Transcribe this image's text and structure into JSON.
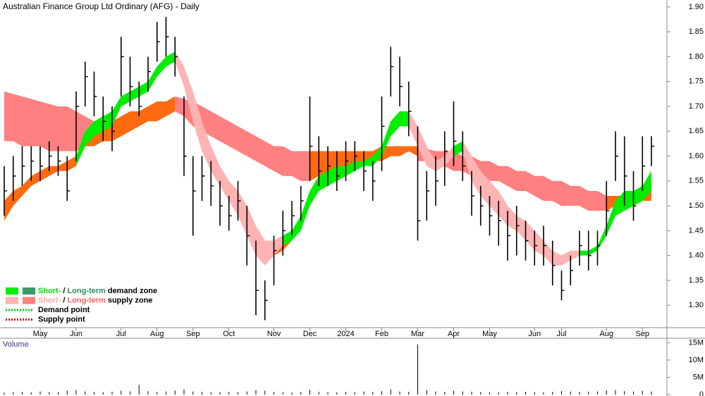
{
  "chart_data": [
    {
      "type": "ohlc",
      "title": "Australian Finance Group Ltd Ordinary (AFG) - Daily",
      "bar_color": "#000000",
      "categories": [
        null,
        null,
        null,
        null,
        "May",
        null,
        null,
        null,
        "Jun",
        null,
        null,
        null,
        null,
        "Jul",
        null,
        null,
        null,
        "Aug",
        null,
        null,
        null,
        "Sep",
        null,
        null,
        null,
        "Oct",
        null,
        null,
        null,
        null,
        "Nov",
        null,
        null,
        null,
        "Dec",
        null,
        null,
        null,
        "2024",
        null,
        null,
        null,
        "Feb",
        null,
        null,
        null,
        "Mar",
        null,
        null,
        null,
        "Apr",
        null,
        null,
        null,
        "May",
        null,
        null,
        null,
        null,
        "Jun",
        null,
        null,
        "Jul",
        null,
        null,
        null,
        null,
        "Aug",
        null,
        null,
        null,
        "Sep",
        null
      ],
      "close": [
        1.53,
        1.56,
        1.58,
        1.59,
        1.58,
        1.6,
        1.59,
        1.53,
        1.7,
        1.76,
        1.72,
        1.67,
        1.65,
        1.8,
        1.74,
        1.7,
        1.77,
        1.83,
        1.84,
        1.8,
        1.6,
        1.53,
        1.56,
        1.54,
        1.5,
        1.48,
        1.51,
        1.44,
        1.33,
        1.31,
        1.41,
        1.45,
        1.48,
        1.51,
        1.62,
        1.57,
        1.58,
        1.56,
        1.59,
        1.6,
        1.57,
        1.55,
        1.66,
        1.78,
        1.74,
        1.69,
        1.47,
        1.53,
        1.55,
        1.61,
        1.63,
        1.58,
        1.52,
        1.5,
        1.48,
        1.47,
        1.44,
        1.46,
        1.43,
        1.42,
        1.42,
        1.38,
        1.33,
        1.37,
        1.42,
        1.4,
        1.42,
        1.49,
        1.6,
        1.56,
        1.5,
        1.58,
        1.62
      ],
      "high": [
        1.58,
        1.6,
        1.62,
        1.62,
        1.62,
        1.63,
        1.62,
        1.6,
        1.73,
        1.79,
        1.77,
        1.72,
        1.7,
        1.84,
        1.8,
        1.75,
        1.8,
        1.87,
        1.88,
        1.84,
        1.72,
        1.6,
        1.6,
        1.59,
        1.55,
        1.52,
        1.55,
        1.5,
        1.43,
        1.35,
        1.44,
        1.49,
        1.51,
        1.54,
        1.72,
        1.64,
        1.62,
        1.61,
        1.63,
        1.63,
        1.61,
        1.59,
        1.72,
        1.82,
        1.8,
        1.75,
        1.66,
        1.57,
        1.6,
        1.65,
        1.71,
        1.65,
        1.57,
        1.54,
        1.52,
        1.51,
        1.49,
        1.5,
        1.47,
        1.45,
        1.46,
        1.43,
        1.37,
        1.4,
        1.45,
        1.45,
        1.45,
        1.55,
        1.65,
        1.64,
        1.57,
        1.64,
        1.64
      ],
      "low": [
        1.48,
        1.51,
        1.54,
        1.55,
        1.55,
        1.57,
        1.56,
        1.51,
        1.59,
        1.7,
        1.68,
        1.63,
        1.61,
        1.72,
        1.7,
        1.68,
        1.73,
        1.79,
        1.8,
        1.76,
        1.56,
        1.44,
        1.51,
        1.5,
        1.46,
        1.45,
        1.47,
        1.38,
        1.28,
        1.27,
        1.34,
        1.4,
        1.44,
        1.47,
        1.55,
        1.54,
        1.54,
        1.53,
        1.55,
        1.57,
        1.53,
        1.51,
        1.57,
        1.72,
        1.7,
        1.64,
        1.43,
        1.47,
        1.5,
        1.54,
        1.58,
        1.55,
        1.48,
        1.46,
        1.44,
        1.42,
        1.39,
        1.4,
        1.39,
        1.38,
        1.38,
        1.34,
        1.31,
        1.34,
        1.38,
        1.37,
        1.38,
        1.44,
        1.55,
        1.5,
        1.47,
        1.53,
        1.58
      ],
      "zones": [
        {
          "color": "#ff8080",
          "upper": [
            1.73,
            1.725,
            1.72,
            1.715,
            1.71,
            1.705,
            1.7,
            1.7,
            1.69,
            1.68,
            1.67,
            null,
            null,
            null,
            null,
            null,
            null,
            null,
            null,
            1.72,
            1.715,
            1.71,
            1.7,
            1.69,
            1.68,
            1.67,
            1.66,
            1.65,
            1.64,
            1.63,
            1.62,
            1.62,
            1.61,
            1.61,
            1.61,
            null,
            null,
            null,
            null,
            null,
            null,
            null,
            null,
            null,
            null,
            null,
            1.62,
            1.615,
            1.61,
            1.61,
            1.61,
            1.6,
            1.6,
            1.59,
            1.59,
            1.58,
            1.58,
            1.57,
            1.57,
            1.56,
            1.56,
            1.55,
            1.55,
            1.54,
            1.54,
            1.53,
            1.53,
            1.52,
            null,
            null,
            null,
            null,
            null
          ],
          "lower": [
            1.63,
            1.63,
            1.62,
            1.62,
            1.62,
            1.61,
            1.61,
            1.61,
            1.61,
            1.62,
            1.63,
            null,
            null,
            null,
            null,
            null,
            null,
            null,
            null,
            1.69,
            1.68,
            1.66,
            1.65,
            1.64,
            1.63,
            1.62,
            1.61,
            1.6,
            1.59,
            1.58,
            1.57,
            1.56,
            1.56,
            1.55,
            1.55,
            null,
            null,
            null,
            null,
            null,
            null,
            null,
            null,
            null,
            null,
            null,
            1.59,
            1.59,
            1.58,
            1.58,
            1.57,
            1.57,
            1.56,
            1.56,
            1.55,
            1.55,
            1.54,
            1.53,
            1.53,
            1.52,
            1.51,
            1.51,
            1.5,
            1.5,
            1.5,
            1.49,
            1.49,
            1.49,
            null,
            null,
            null,
            null,
            null
          ]
        },
        {
          "color": "#ff6a10",
          "upper": [
            1.51,
            1.53,
            1.54,
            1.56,
            1.57,
            1.58,
            1.58,
            1.59,
            1.6,
            1.64,
            1.65,
            1.66,
            1.67,
            1.68,
            1.69,
            1.69,
            1.7,
            1.71,
            1.71,
            1.72,
            null,
            null,
            null,
            null,
            null,
            null,
            null,
            null,
            null,
            null,
            1.43,
            1.44,
            1.45,
            null,
            1.61,
            1.61,
            1.61,
            1.61,
            1.61,
            1.61,
            1.61,
            1.61,
            1.62,
            1.62,
            1.62,
            1.62,
            1.62,
            null,
            null,
            null,
            null,
            null,
            null,
            null,
            null,
            null,
            null,
            null,
            null,
            null,
            null,
            null,
            null,
            null,
            null,
            null,
            null,
            1.52,
            1.52,
            1.52,
            1.53,
            1.53,
            1.53
          ],
          "lower": [
            1.47,
            1.5,
            1.52,
            1.54,
            1.55,
            1.56,
            1.57,
            1.57,
            1.58,
            1.62,
            1.62,
            1.63,
            1.63,
            1.64,
            1.65,
            1.66,
            1.67,
            1.67,
            1.68,
            1.69,
            null,
            null,
            null,
            null,
            null,
            null,
            null,
            null,
            null,
            null,
            1.4,
            1.41,
            1.43,
            null,
            1.55,
            1.56,
            1.56,
            1.57,
            1.57,
            1.58,
            1.58,
            1.59,
            1.59,
            1.6,
            1.6,
            1.61,
            1.6,
            null,
            null,
            null,
            null,
            null,
            null,
            null,
            null,
            null,
            null,
            null,
            null,
            null,
            null,
            null,
            null,
            null,
            null,
            null,
            null,
            1.49,
            1.5,
            1.5,
            1.5,
            1.51,
            1.51
          ]
        },
        {
          "color": "#ffb3b3",
          "upper": [
            null,
            null,
            null,
            null,
            null,
            null,
            null,
            null,
            null,
            null,
            null,
            null,
            null,
            null,
            null,
            null,
            null,
            null,
            null,
            1.81,
            1.78,
            1.73,
            1.67,
            1.62,
            1.58,
            1.55,
            1.53,
            1.5,
            1.46,
            1.43,
            1.43,
            1.44,
            null,
            null,
            null,
            null,
            null,
            null,
            null,
            null,
            null,
            null,
            null,
            null,
            null,
            1.69,
            1.66,
            1.62,
            1.59,
            1.6,
            1.62,
            1.63,
            1.6,
            1.57,
            1.55,
            1.53,
            1.5,
            1.48,
            1.47,
            1.45,
            1.43,
            1.41,
            1.4,
            1.41,
            1.41,
            null,
            null,
            null,
            null,
            null,
            null,
            null,
            null
          ],
          "lower": [
            null,
            null,
            null,
            null,
            null,
            null,
            null,
            null,
            null,
            null,
            null,
            null,
            null,
            null,
            null,
            null,
            null,
            null,
            null,
            1.79,
            1.74,
            1.67,
            1.61,
            1.57,
            1.54,
            1.51,
            1.48,
            1.44,
            1.4,
            1.38,
            1.4,
            1.42,
            null,
            null,
            null,
            null,
            null,
            null,
            null,
            null,
            null,
            null,
            null,
            null,
            null,
            1.66,
            1.62,
            1.58,
            1.57,
            1.58,
            1.6,
            1.61,
            1.55,
            1.52,
            1.5,
            1.48,
            1.46,
            1.45,
            1.43,
            1.41,
            1.4,
            1.38,
            1.38,
            1.39,
            1.4,
            null,
            null,
            null,
            null,
            null,
            null,
            null,
            null
          ]
        },
        {
          "color": "#00ee00",
          "upper": [
            null,
            null,
            null,
            null,
            null,
            null,
            null,
            null,
            1.6,
            1.65,
            1.67,
            1.68,
            1.69,
            1.72,
            1.73,
            1.74,
            1.75,
            1.78,
            1.8,
            1.81,
            null,
            null,
            null,
            null,
            null,
            null,
            null,
            null,
            null,
            null,
            null,
            1.44,
            1.45,
            1.48,
            1.53,
            1.56,
            1.57,
            1.58,
            1.58,
            1.59,
            1.59,
            1.6,
            1.62,
            1.67,
            1.69,
            1.69,
            null,
            null,
            null,
            null,
            1.62,
            1.63,
            null,
            null,
            null,
            null,
            null,
            null,
            null,
            null,
            null,
            null,
            null,
            null,
            1.41,
            1.41,
            1.42,
            1.46,
            1.51,
            1.53,
            1.53,
            1.54,
            1.57
          ],
          "lower": [
            null,
            null,
            null,
            null,
            null,
            null,
            null,
            null,
            1.58,
            1.62,
            1.64,
            1.65,
            1.66,
            1.7,
            1.71,
            1.72,
            1.73,
            1.76,
            1.78,
            1.79,
            null,
            null,
            null,
            null,
            null,
            null,
            null,
            null,
            null,
            null,
            null,
            1.42,
            1.43,
            1.45,
            1.5,
            1.53,
            1.54,
            1.55,
            1.56,
            1.57,
            1.58,
            1.58,
            1.6,
            1.64,
            1.66,
            1.66,
            null,
            null,
            null,
            null,
            1.6,
            1.61,
            null,
            null,
            null,
            null,
            null,
            null,
            null,
            null,
            null,
            null,
            null,
            null,
            1.4,
            1.4,
            1.41,
            1.44,
            1.48,
            1.49,
            1.5,
            1.51,
            1.53
          ]
        }
      ],
      "ylim": [
        1.255,
        1.914
      ],
      "yticks": [
        {
          "value": 1.9,
          "label": "1.90"
        },
        {
          "value": 1.85,
          "label": "1.85"
        },
        {
          "value": 1.8,
          "label": "1.80"
        },
        {
          "value": 1.75,
          "label": "1.75"
        },
        {
          "value": 1.7,
          "label": "1.70"
        },
        {
          "value": 1.65,
          "label": "1.65"
        },
        {
          "value": 1.6,
          "label": "1.60"
        },
        {
          "value": 1.55,
          "label": "1.55"
        },
        {
          "value": 1.5,
          "label": "1.50"
        },
        {
          "value": 1.45,
          "label": "1.45"
        },
        {
          "value": 1.4,
          "label": "1.40"
        },
        {
          "value": 1.35,
          "label": "1.35"
        },
        {
          "value": 1.3,
          "label": "1.30"
        }
      ],
      "legend": [
        {
          "parts": [
            "Short-",
            "/",
            "Long-term",
            "demand zone"
          ],
          "part_colors": [
            "#00dd00",
            "#000000",
            "#2e8b57",
            "#000000"
          ],
          "swatches": [
            "#00ee00",
            "#3a9a6a"
          ]
        },
        {
          "parts": [
            "Short-",
            "/",
            "Long-term",
            "supply zone"
          ],
          "part_colors": [
            "#ffaaaa",
            "#000000",
            "#ff6060",
            "#000000"
          ],
          "swatches": [
            "#ffb3b3",
            "#ff8080"
          ]
        },
        {
          "parts": [
            "Demand point"
          ],
          "part_colors": [
            "#000000"
          ],
          "dotted": "#00cc00"
        },
        {
          "parts": [
            "Supply point"
          ],
          "part_colors": [
            "#000000"
          ],
          "dotted": "#dd0000"
        }
      ]
    },
    {
      "type": "bar",
      "title": "Volume",
      "color": "#000000",
      "values": [
        600000,
        700000,
        800000,
        650000,
        900000,
        700000,
        750000,
        1200000,
        1300000,
        900000,
        800000,
        700000,
        850000,
        1100000,
        900000,
        2800000,
        1000000,
        800000,
        900000,
        1200000,
        1500000,
        900000,
        800000,
        700000,
        750000,
        800000,
        700000,
        900000,
        1300000,
        1100000,
        800000,
        700000,
        650000,
        750000,
        1400000,
        800000,
        700000,
        650000,
        800000,
        700000,
        900000,
        800000,
        1000000,
        1500000,
        900000,
        800000,
        14500000,
        1300000,
        900000,
        800000,
        1100000,
        900000,
        850000,
        750000,
        700000,
        700000,
        800000,
        750000,
        800000,
        750000,
        700000,
        800000,
        1000000,
        900000,
        800000,
        850000,
        900000,
        1200000,
        1300000,
        1000000,
        900000,
        1100000,
        900000
      ],
      "ylim": [
        0,
        15500000
      ],
      "yticks": [
        {
          "value": 15000000,
          "label": "15M"
        },
        {
          "value": 10000000,
          "label": "10M"
        },
        {
          "value": 5000000,
          "label": "5M"
        },
        0
      ]
    }
  ]
}
